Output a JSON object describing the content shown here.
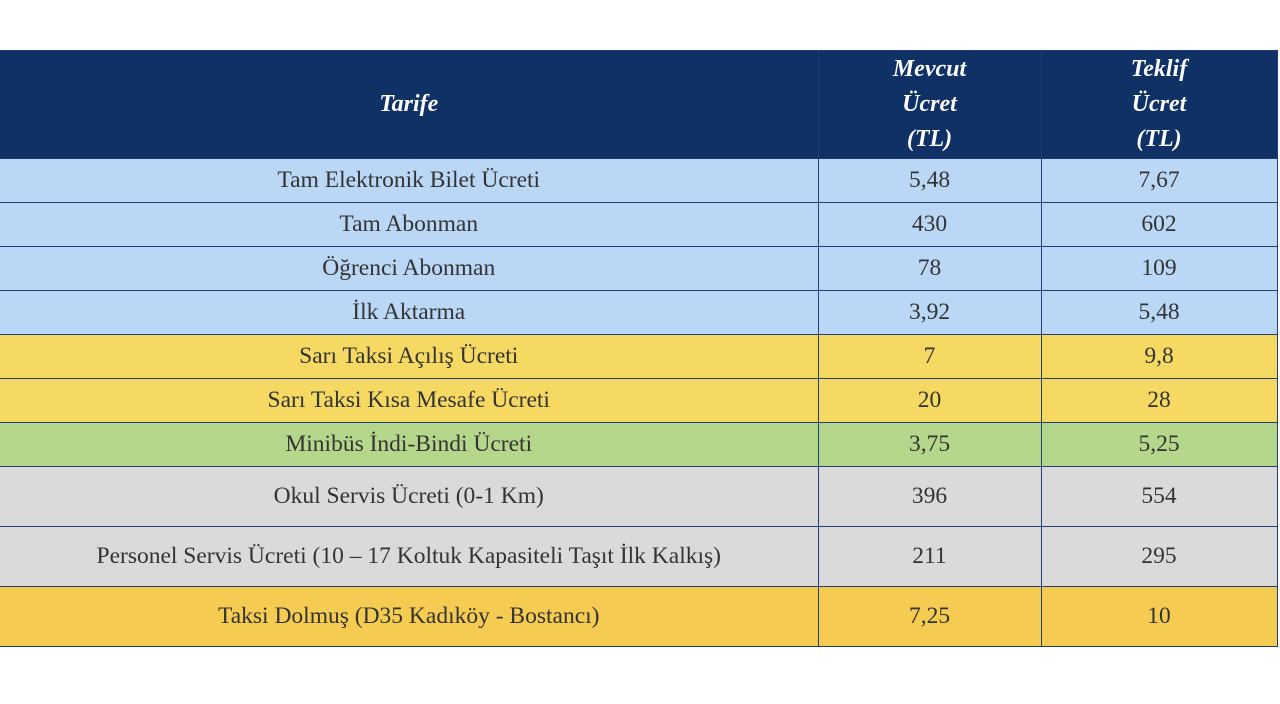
{
  "table": {
    "headers": {
      "tariff": "Tarife",
      "current": [
        "Mevcut",
        "Ücret",
        "(TL)"
      ],
      "proposed": [
        "Teklif",
        "Ücret",
        "(TL)"
      ]
    },
    "colors": {
      "header": "#0f3166",
      "blue": "#bad7f6",
      "yellow": "#f6d962",
      "green": "#b5d78c",
      "gray": "#dadada",
      "orange": "#f5cb52"
    },
    "rows": [
      {
        "name": "Tam Elektronik Bilet Ücreti",
        "current": "5,48",
        "proposed": "7,67",
        "group": "blue"
      },
      {
        "name": "Tam Abonman",
        "current": "430",
        "proposed": "602",
        "group": "blue"
      },
      {
        "name": "Öğrenci Abonman",
        "current": "78",
        "proposed": "109",
        "group": "blue"
      },
      {
        "name": "İlk Aktarma",
        "current": "3,92",
        "proposed": "5,48",
        "group": "blue"
      },
      {
        "name": "Sarı Taksi Açılış Ücreti",
        "current": "7",
        "proposed": "9,8",
        "group": "yellow"
      },
      {
        "name": "Sarı Taksi Kısa Mesafe Ücreti",
        "current": "20",
        "proposed": "28",
        "group": "yellow"
      },
      {
        "name": "Minibüs İndi-Bindi Ücreti",
        "current": "3,75",
        "proposed": "5,25",
        "group": "green"
      },
      {
        "name": "Okul Servis Ücreti (0-1 Km)",
        "current": "396",
        "proposed": "554",
        "group": "gray"
      },
      {
        "name": "Personel Servis Ücreti (10 – 17 Koltuk Kapasiteli Taşıt İlk Kalkış)",
        "current": "211",
        "proposed": "295",
        "group": "gray"
      },
      {
        "name": "Taksi Dolmuş (D35 Kadıköy - Bostancı)",
        "current": "7,25",
        "proposed": "10",
        "group": "orange"
      }
    ]
  }
}
